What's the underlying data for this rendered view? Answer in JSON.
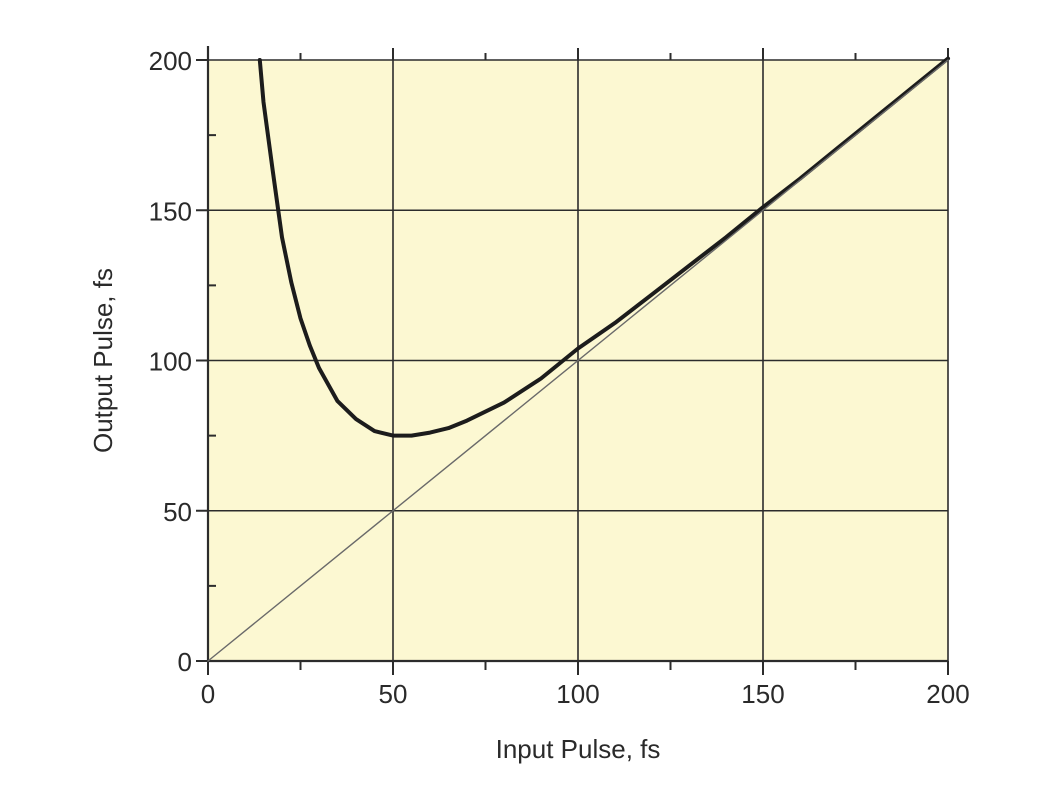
{
  "colors": {
    "plot_background": "#fcf8d2",
    "grid": "#2c2c2c",
    "curve": "#1c1c1c",
    "reference_line": "#6a6a6a",
    "text": "#2a2a2a"
  },
  "chart_data": {
    "type": "line",
    "title": "",
    "xlabel": "Input Pulse, fs",
    "ylabel": "Output Pulse, fs",
    "xlim": [
      0,
      200
    ],
    "ylim": [
      0,
      200
    ],
    "grid": true,
    "x_ticks": [
      0,
      50,
      100,
      150,
      200
    ],
    "y_ticks": [
      0,
      50,
      100,
      150,
      200
    ],
    "x_tick_labels": [
      "0",
      "50",
      "100",
      "150",
      "200"
    ],
    "y_tick_labels": [
      "0",
      "50",
      "100",
      "150",
      "200"
    ],
    "minor_tick_step": 25,
    "series": [
      {
        "style": "thick",
        "x": [
          14,
          15,
          17.5,
          20,
          22.5,
          25,
          27.5,
          30,
          35,
          40,
          45,
          50,
          55,
          60,
          65,
          70,
          80,
          90,
          100,
          110,
          120,
          130,
          140,
          150,
          160,
          170,
          180,
          190,
          200
        ],
        "y": [
          200,
          186,
          163,
          141,
          126,
          114,
          105,
          97.5,
          86.5,
          80.5,
          76.5,
          75,
          75,
          76,
          77.5,
          80,
          86,
          94,
          104,
          112.5,
          122,
          131.5,
          141,
          151,
          160.5,
          170.5,
          180.5,
          190.5,
          200.5
        ]
      },
      {
        "style": "thin",
        "x": [
          0,
          200
        ],
        "y": [
          0,
          200
        ]
      }
    ]
  }
}
